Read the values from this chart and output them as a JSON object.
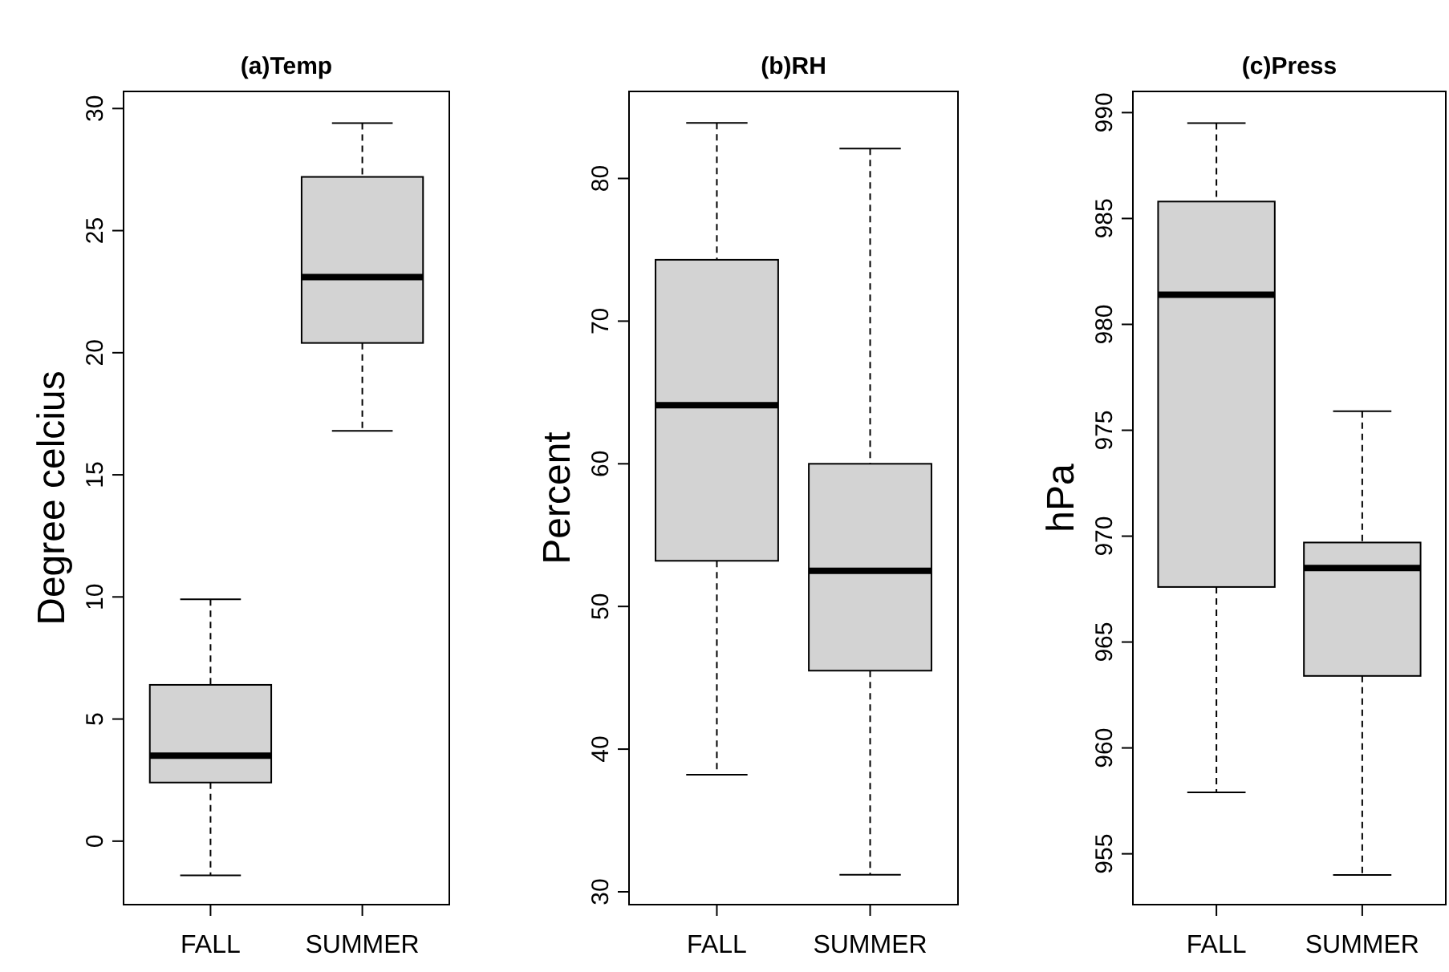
{
  "chart_data": [
    {
      "type": "box",
      "title": "(a)Temp",
      "ylabel": "Degree celcius",
      "categories": [
        "FALL",
        "SUMMER"
      ],
      "ylim": [
        -2.6,
        30.7
      ],
      "yticks": [
        0,
        5,
        10,
        15,
        20,
        25,
        30
      ],
      "series": [
        {
          "color": "#d3d3d3",
          "boxes": [
            {
              "low": -1.4,
              "q1": 2.4,
              "median": 3.5,
              "q3": 6.4,
              "high": 9.9
            },
            {
              "low": 16.8,
              "q1": 20.4,
              "median": 23.1,
              "q3": 27.2,
              "high": 29.4
            }
          ]
        }
      ]
    },
    {
      "type": "box",
      "title": "(b)RH",
      "ylabel": "Percent",
      "categories": [
        "FALL",
        "SUMMER"
      ],
      "ylim": [
        29.1,
        86.1
      ],
      "yticks": [
        30,
        40,
        50,
        60,
        70,
        80
      ],
      "series": [
        {
          "color": "#d3d3d3",
          "boxes": [
            {
              "low": 38.2,
              "q1": 53.2,
              "median": 64.1,
              "q3": 74.3,
              "high": 83.9
            },
            {
              "low": 31.2,
              "q1": 45.5,
              "median": 52.5,
              "q3": 60,
              "high": 82.1
            }
          ]
        }
      ]
    },
    {
      "type": "box",
      "title": "(c)Press",
      "ylabel": "hPa",
      "categories": [
        "FALL",
        "SUMMER"
      ],
      "ylim": [
        952.6,
        991
      ],
      "yticks": [
        955,
        960,
        965,
        970,
        975,
        980,
        985,
        990
      ],
      "series": [
        {
          "color": "#d3d3d3",
          "boxes": [
            {
              "low": 957.9,
              "q1": 967.6,
              "median": 981.4,
              "q3": 985.8,
              "high": 989.5
            },
            {
              "low": 954,
              "q1": 963.4,
              "median": 968.5,
              "q3": 969.7,
              "high": 975.9
            }
          ]
        }
      ]
    }
  ]
}
